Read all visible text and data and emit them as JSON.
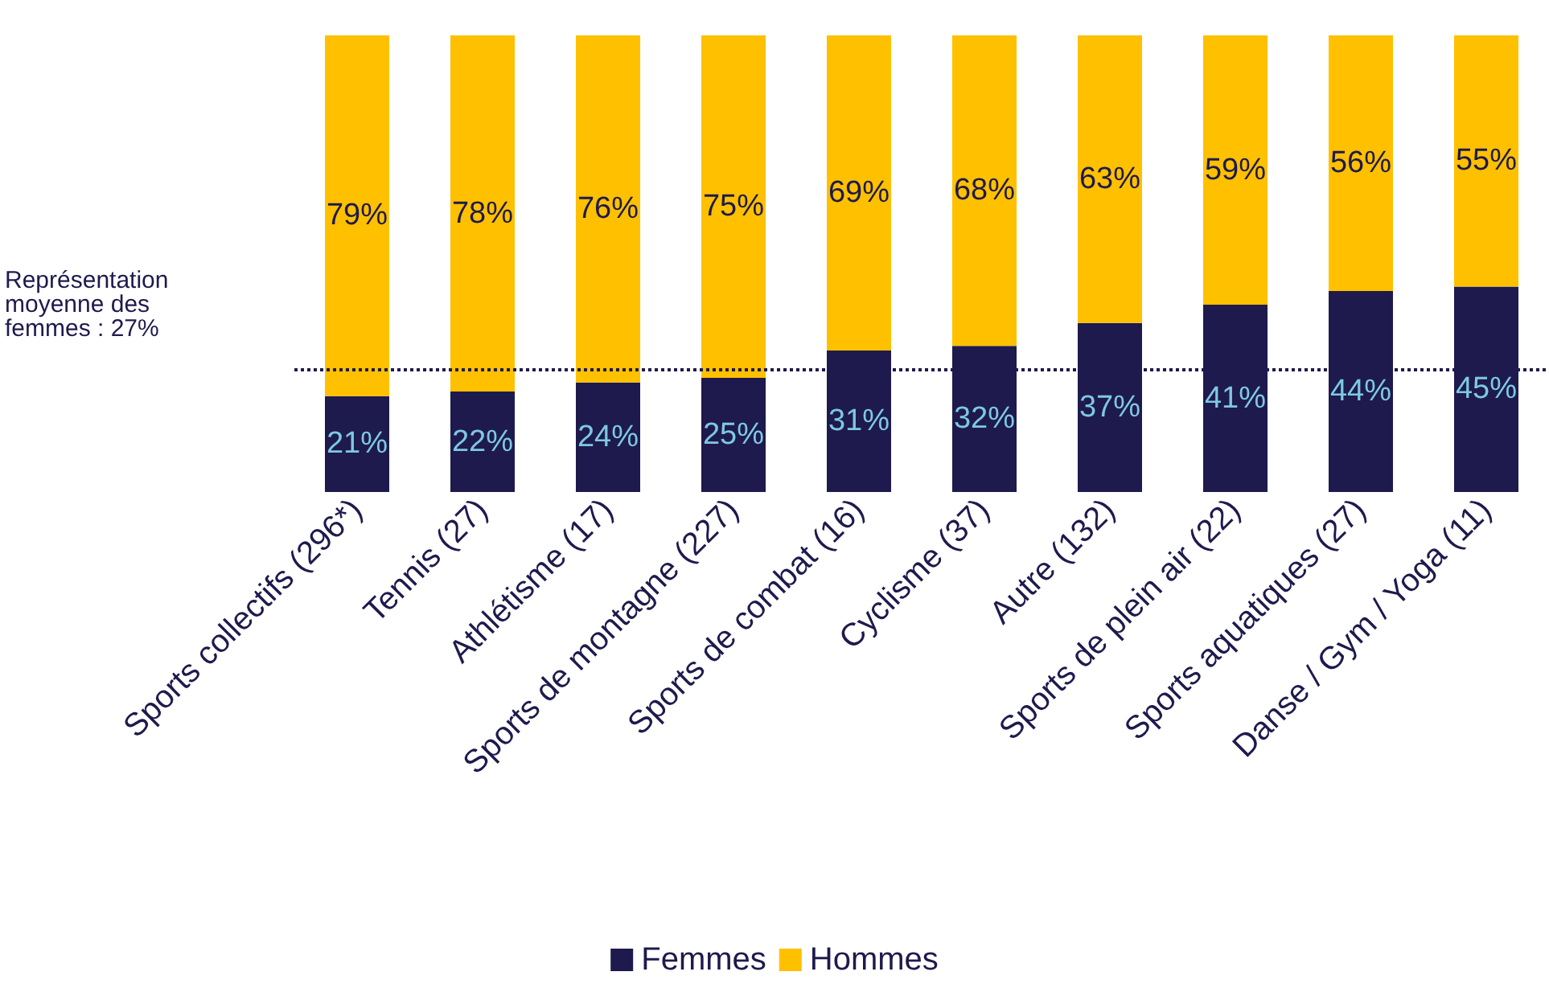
{
  "chart_data": {
    "type": "bar",
    "stacked": true,
    "categories": [
      "Sports collectifs (296*)",
      "Tennis (27)",
      "Athlétisme (17)",
      "Sports de montagne (227)",
      "Sports de combat (16)",
      "Cyclisme (37)",
      "Autre (132)",
      "Sports de plein air (22)",
      "Sports aquatiques (27)",
      "Danse / Gym / Yoga (11)"
    ],
    "series": [
      {
        "name": "Femmes",
        "color": "#1e1a4d",
        "values": [
          21,
          22,
          24,
          25,
          31,
          32,
          37,
          41,
          44,
          45
        ],
        "value_labels": [
          "21%",
          "22%",
          "24%",
          "25%",
          "31%",
          "32%",
          "37%",
          "41%",
          "44%",
          "45%"
        ]
      },
      {
        "name": "Hommes",
        "color": "#ffc000",
        "values": [
          79,
          78,
          76,
          75,
          69,
          68,
          63,
          59,
          56,
          55
        ],
        "value_labels": [
          "79%",
          "78%",
          "76%",
          "75%",
          "69%",
          "68%",
          "63%",
          "59%",
          "56%",
          "55%"
        ]
      }
    ],
    "tick_labels": "x",
    "legend": "bottom",
    "ref_lines": [
      {
        "axis": "y",
        "value": 27,
        "label": "Représentation moyenne des femmes : 27%",
        "color": "#1e1a4d",
        "line_style": "dotted"
      }
    ]
  }
}
